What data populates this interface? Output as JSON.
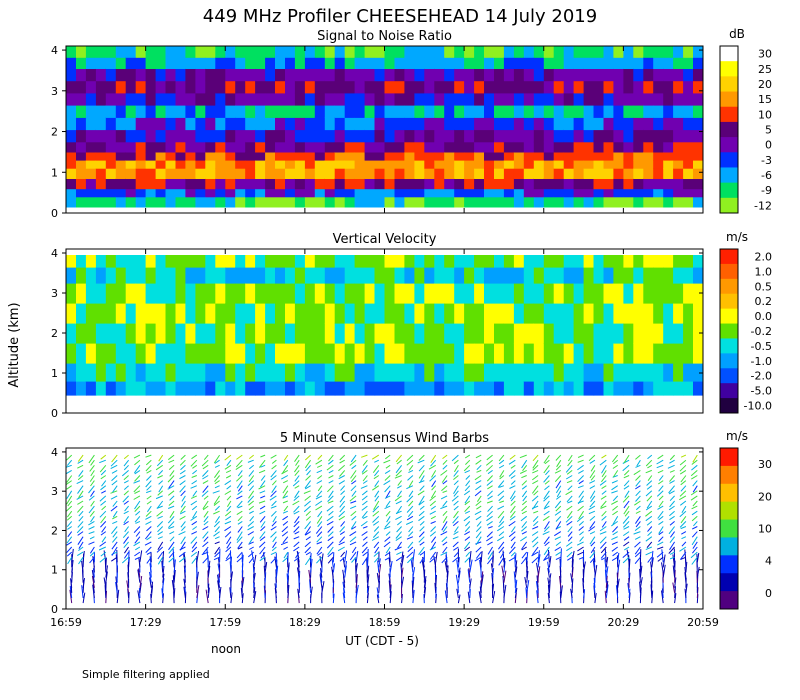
{
  "figure": {
    "title": "449 MHz Profiler CHEESEHEAD 14 July 2019",
    "ylabel": "Altitude (km)",
    "xlabel": "UT  (CDT - 5)",
    "noon_label": "noon",
    "footnote": "Simple filtering applied"
  },
  "chart_data": [
    {
      "type": "heatmap",
      "title": "Signal to Noise Ratio",
      "x_ticks": [
        "16:59",
        "17:29",
        "17:59",
        "18:29",
        "18:59",
        "19:29",
        "19:59",
        "20:29",
        "20:59"
      ],
      "y_ticks": [
        0,
        1,
        2,
        3,
        4
      ],
      "ylim": [
        0,
        4.1
      ],
      "colorbar": {
        "unit": "dB",
        "labels": [
          "30",
          "25",
          "20",
          "15",
          "10",
          "5",
          "0",
          "-3",
          "-6",
          "-9",
          "-12"
        ],
        "colors": [
          "#ffffff",
          "#ffff00",
          "#ffd200",
          "#ff9900",
          "#ff3300",
          "#5a0078",
          "#7000b0",
          "#0030ff",
          "#00a8ff",
          "#00e060",
          "#90f020"
        ]
      },
      "profile": [
        {
          "alt": 0.3,
          "level": 9
        },
        {
          "alt": 0.5,
          "level": 7
        },
        {
          "alt": 0.7,
          "level": 5
        },
        {
          "alt": 1.0,
          "level": 3
        },
        {
          "alt": 1.2,
          "level": 3
        },
        {
          "alt": 1.4,
          "level": 4
        },
        {
          "alt": 1.6,
          "level": 5
        },
        {
          "alt": 1.9,
          "level": 6
        },
        {
          "alt": 2.2,
          "level": 7
        },
        {
          "alt": 2.5,
          "level": 8
        },
        {
          "alt": 2.8,
          "level": 6
        },
        {
          "alt": 3.1,
          "level": 5
        },
        {
          "alt": 3.4,
          "level": 6
        },
        {
          "alt": 3.7,
          "level": 8
        },
        {
          "alt": 3.95,
          "level": 9
        }
      ]
    },
    {
      "type": "heatmap",
      "title": "Vertical Velocity",
      "x_ticks": [
        "16:59",
        "17:29",
        "17:59",
        "18:29",
        "18:59",
        "19:29",
        "19:59",
        "20:29",
        "20:59"
      ],
      "y_ticks": [
        0,
        1,
        2,
        3,
        4
      ],
      "ylim": [
        0,
        4.1
      ],
      "colorbar": {
        "unit": "m/s",
        "labels": [
          "2.0",
          "1.0",
          "0.5",
          "0.2",
          "0.0",
          "-0.2",
          "-0.5",
          "-1.0",
          "-2.0",
          "-5.0",
          "-10.0"
        ],
        "colors": [
          "#ff2000",
          "#ff6000",
          "#ff9900",
          "#ffc000",
          "#ffff00",
          "#60e000",
          "#00e0e0",
          "#00a0ff",
          "#0050ff",
          "#4000a0",
          "#200040"
        ]
      },
      "profile": [
        {
          "alt": 0.6,
          "level": 7
        },
        {
          "alt": 1.0,
          "level": 6
        },
        {
          "alt": 1.5,
          "level": 5
        },
        {
          "alt": 2.0,
          "level": 5
        },
        {
          "alt": 2.5,
          "level": 5
        },
        {
          "alt": 3.0,
          "level": 5
        },
        {
          "alt": 3.5,
          "level": 6
        },
        {
          "alt": 3.8,
          "level": 5
        }
      ]
    },
    {
      "type": "wind_barbs",
      "title": "5 Minute Consensus Wind Barbs",
      "x_ticks": [
        "16:59",
        "17:29",
        "17:59",
        "18:29",
        "18:59",
        "19:29",
        "19:59",
        "20:29",
        "20:59"
      ],
      "y_ticks": [
        0,
        1,
        2,
        3,
        4
      ],
      "ylim": [
        0,
        4.1
      ],
      "colorbar": {
        "unit": "m/s",
        "labels": [
          "30",
          "20",
          "10",
          "4",
          "0"
        ],
        "colors": [
          "#ff1a00",
          "#ff7f00",
          "#ffbf00",
          "#b0e000",
          "#40e040",
          "#00b0e0",
          "#0030ff",
          "#0000b0",
          "#500080"
        ]
      },
      "profile": [
        {
          "alt": 0.3,
          "speed": 4
        },
        {
          "alt": 0.8,
          "speed": 5
        },
        {
          "alt": 1.3,
          "speed": 8
        },
        {
          "alt": 1.8,
          "speed": 10
        },
        {
          "alt": 2.3,
          "speed": 12
        },
        {
          "alt": 2.8,
          "speed": 12
        },
        {
          "alt": 3.3,
          "speed": 13
        },
        {
          "alt": 3.8,
          "speed": 16
        }
      ]
    }
  ]
}
